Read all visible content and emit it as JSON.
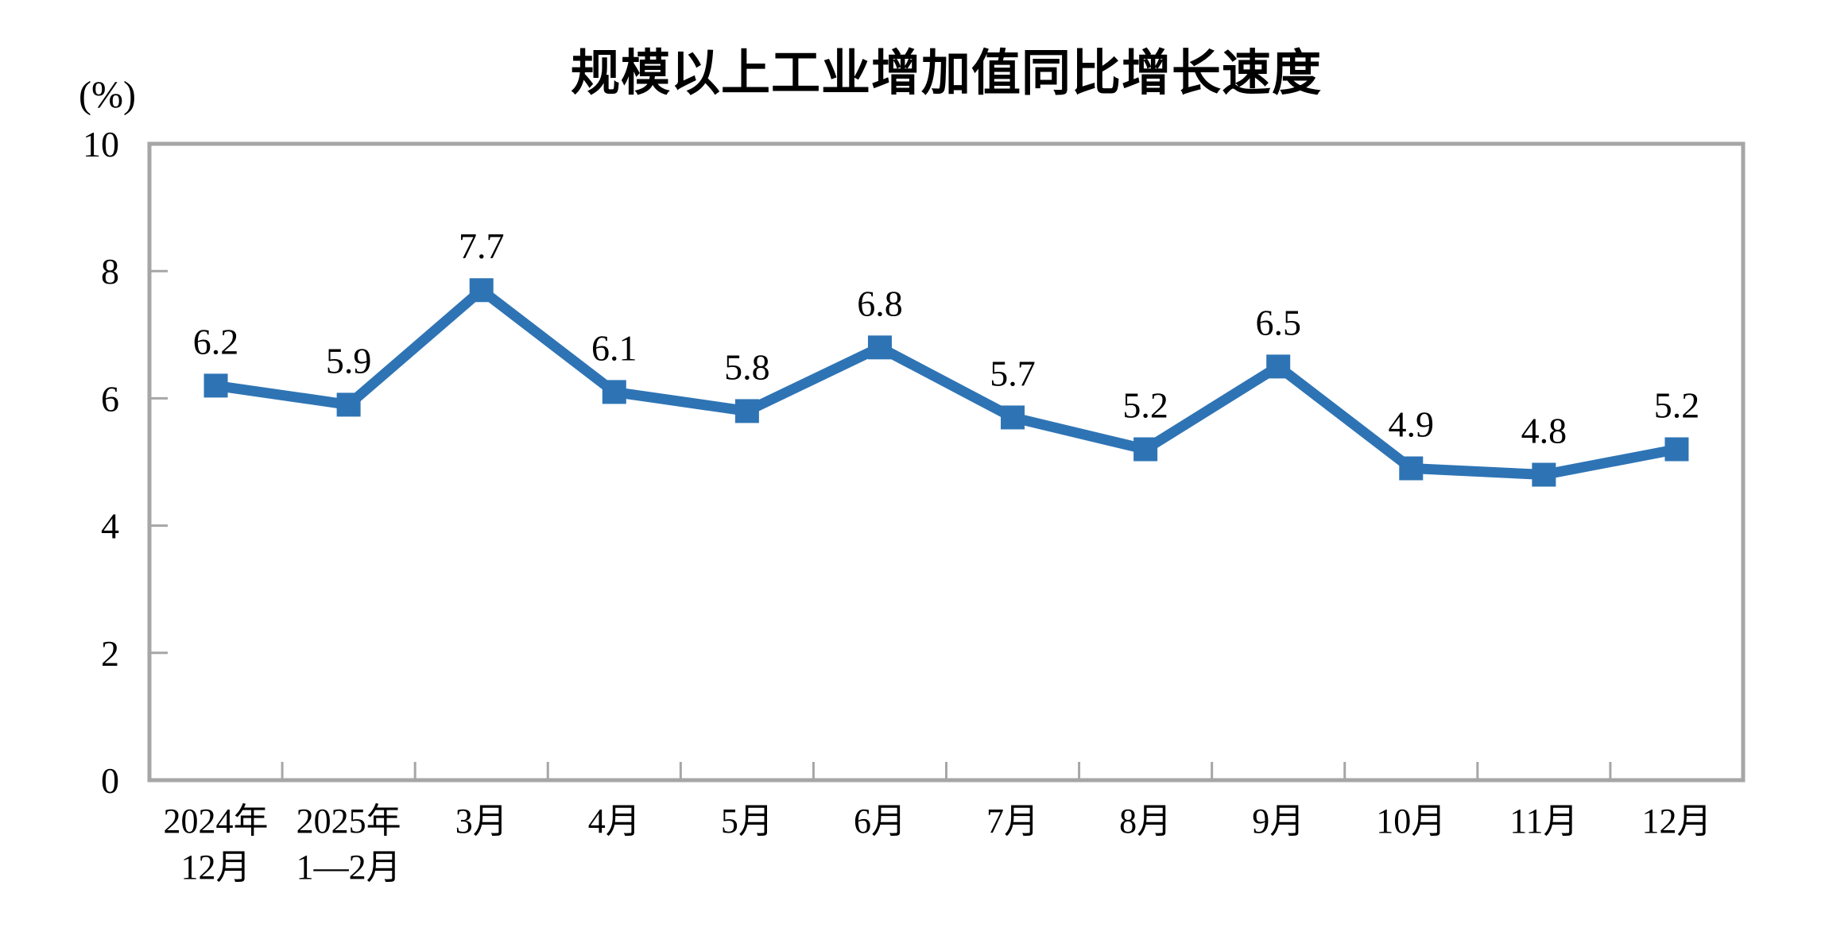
{
  "chart_data": {
    "type": "line",
    "title": "规模以上工业增加值同比增长速度",
    "ylabel": "(%)",
    "xlabel": "",
    "ylim": [
      0,
      10
    ],
    "yticks": [
      0,
      2,
      4,
      6,
      8,
      10
    ],
    "categories": [
      [
        "2024年",
        "12月"
      ],
      [
        "2025年",
        "1—2月"
      ],
      [
        "3月"
      ],
      [
        "4月"
      ],
      [
        "5月"
      ],
      [
        "6月"
      ],
      [
        "7月"
      ],
      [
        "8月"
      ],
      [
        "9月"
      ],
      [
        "10月"
      ],
      [
        "11月"
      ],
      [
        "12月"
      ]
    ],
    "series": [
      {
        "name": "规模以上工业增加值同比增长速度",
        "values": [
          6.2,
          5.9,
          7.7,
          6.1,
          5.8,
          6.8,
          5.7,
          5.2,
          6.5,
          4.9,
          4.8,
          5.2
        ]
      }
    ],
    "data_labels": [
      "6.2",
      "5.9",
      "7.7",
      "6.1",
      "5.8",
      "6.8",
      "5.7",
      "5.2",
      "6.5",
      "4.9",
      "4.8",
      "5.2"
    ],
    "grid": false,
    "legend": "none",
    "marker": "square",
    "colors": {
      "series": "#2E74B5",
      "axis_border": "#A6A6A6",
      "text": "#000000",
      "background": "#FFFFFF"
    }
  }
}
